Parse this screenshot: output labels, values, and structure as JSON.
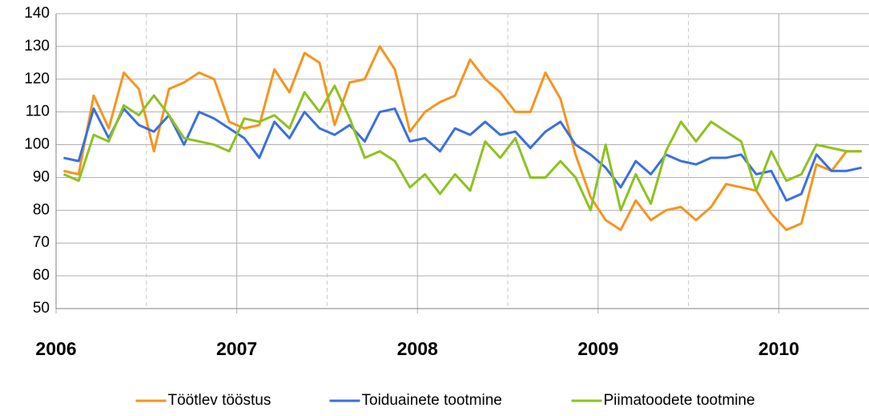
{
  "chart_data": {
    "type": "line",
    "categories": [
      "2006",
      null,
      null,
      null,
      null,
      null,
      null,
      null,
      null,
      null,
      null,
      null,
      "2007",
      null,
      null,
      null,
      null,
      null,
      null,
      null,
      null,
      null,
      null,
      null,
      "2008",
      null,
      null,
      null,
      null,
      null,
      null,
      null,
      null,
      null,
      null,
      null,
      "2009",
      null,
      null,
      null,
      null,
      null,
      null,
      null,
      null,
      null,
      null,
      null,
      "2010",
      null,
      null,
      null,
      null,
      null
    ],
    "series": [
      {
        "name": "Töötlev tööstus",
        "color": "#f7941d",
        "values": [
          92,
          91,
          115,
          105,
          122,
          117,
          98,
          117,
          119,
          122,
          120,
          107,
          105,
          106,
          123,
          116,
          128,
          125,
          106,
          119,
          120,
          130,
          123,
          104,
          110,
          113,
          115,
          126,
          120,
          116,
          110,
          110,
          122,
          114,
          97,
          84,
          77,
          74,
          83,
          77,
          80,
          81,
          77,
          81,
          88,
          87,
          86,
          79,
          74,
          76,
          94,
          92,
          98,
          98
        ]
      },
      {
        "name": "Toiduainete tootmine",
        "color": "#3b6fe0",
        "values": [
          96,
          95,
          111,
          102,
          111,
          106,
          104,
          109,
          100,
          110,
          108,
          105,
          102,
          96,
          107,
          102,
          110,
          105,
          103,
          106,
          101,
          110,
          111,
          101,
          102,
          98,
          105,
          103,
          107,
          103,
          104,
          99,
          104,
          107,
          100,
          97,
          93,
          87,
          95,
          91,
          97,
          95,
          94,
          96,
          96,
          97,
          91,
          92,
          83,
          85,
          97,
          92,
          92,
          93
        ]
      },
      {
        "name": "Piimatoodete tootmine",
        "color": "#8dc21f",
        "values": [
          91,
          89,
          103,
          101,
          112,
          109,
          115,
          109,
          102,
          101,
          100,
          98,
          108,
          107,
          109,
          105,
          116,
          110,
          118,
          108,
          96,
          98,
          95,
          87,
          91,
          85,
          91,
          86,
          101,
          96,
          102,
          90,
          90,
          95,
          90,
          80,
          100,
          80,
          91,
          82,
          98,
          107,
          101,
          107,
          104,
          101,
          86,
          98,
          89,
          91,
          100,
          99,
          98,
          98
        ]
      }
    ],
    "ylim": [
      50,
      140
    ],
    "yticks": [
      50,
      60,
      70,
      80,
      90,
      100,
      110,
      120,
      130,
      140
    ],
    "grid": true,
    "legend": "bottom"
  }
}
